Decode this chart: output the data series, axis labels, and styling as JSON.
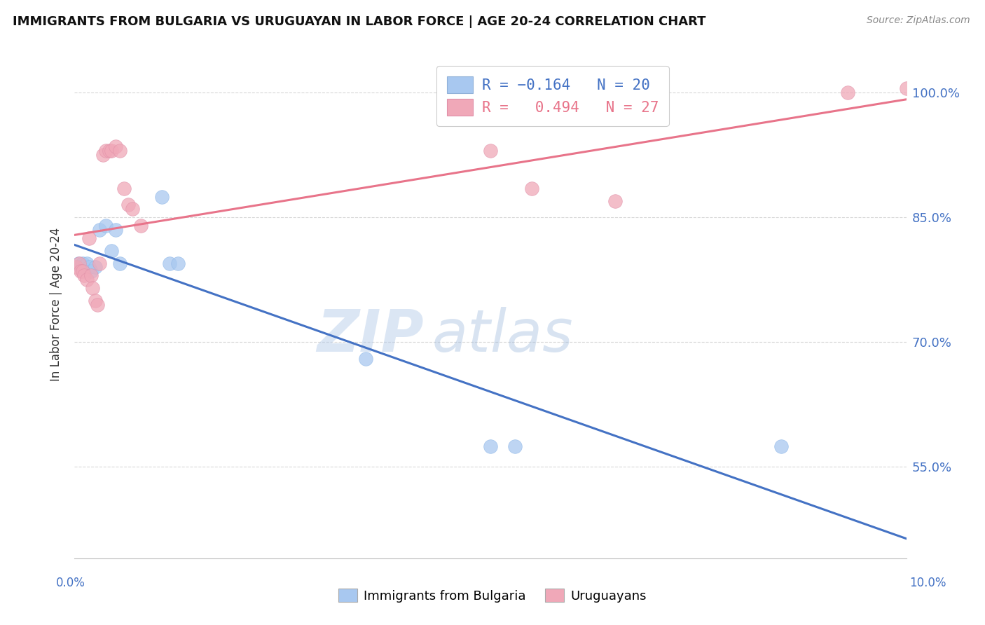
{
  "title": "IMMIGRANTS FROM BULGARIA VS URUGUAYAN IN LABOR FORCE | AGE 20-24 CORRELATION CHART",
  "source": "Source: ZipAtlas.com",
  "ylabel": "In Labor Force | Age 20-24",
  "y_ticks": [
    55.0,
    70.0,
    85.0,
    100.0
  ],
  "y_tick_labels": [
    "55.0%",
    "70.0%",
    "85.0%",
    "100.0%"
  ],
  "x_range": [
    0.0,
    10.0
  ],
  "y_range": [
    44.0,
    105.0
  ],
  "watermark_zip": "ZIP",
  "watermark_atlas": "atlas",
  "bulgaria_x": [
    0.05,
    0.08,
    0.1,
    0.12,
    0.15,
    0.18,
    0.2,
    0.25,
    0.3,
    0.38,
    0.45,
    0.5,
    0.55,
    1.05,
    1.15,
    1.25,
    3.5,
    5.0,
    5.3,
    8.5
  ],
  "bulgaria_y": [
    79.5,
    79.0,
    79.5,
    79.0,
    79.5,
    79.0,
    78.5,
    79.0,
    83.5,
    84.0,
    81.0,
    83.5,
    79.5,
    87.5,
    79.5,
    79.5,
    68.0,
    57.5,
    57.5,
    57.5
  ],
  "uruguay_x": [
    0.03,
    0.06,
    0.08,
    0.1,
    0.12,
    0.15,
    0.18,
    0.2,
    0.22,
    0.25,
    0.28,
    0.3,
    0.35,
    0.38,
    0.42,
    0.45,
    0.5,
    0.55,
    0.6,
    0.65,
    0.7,
    0.8,
    5.0,
    5.5,
    6.5,
    9.3,
    10.0
  ],
  "uruguay_y": [
    79.0,
    79.5,
    78.5,
    78.5,
    78.0,
    77.5,
    82.5,
    78.0,
    76.5,
    75.0,
    74.5,
    79.5,
    92.5,
    93.0,
    93.0,
    93.0,
    93.5,
    93.0,
    88.5,
    86.5,
    86.0,
    84.0,
    93.0,
    88.5,
    87.0,
    100.0,
    100.5
  ],
  "bulgaria_color": "#a8c8f0",
  "uruguay_color": "#f0a8b8",
  "bulgaria_line_color": "#4472c4",
  "uruguay_line_color": "#e8748a",
  "bg_color": "#ffffff",
  "grid_color": "#d8d8d8",
  "R_bulgaria": -0.164,
  "N_bulgaria": 20,
  "R_uruguay": 0.494,
  "N_uruguay": 27,
  "legend_R_label_bulgaria": "R = −0.164   N = 20",
  "legend_R_label_uruguay": "R =   0.494   N = 27"
}
